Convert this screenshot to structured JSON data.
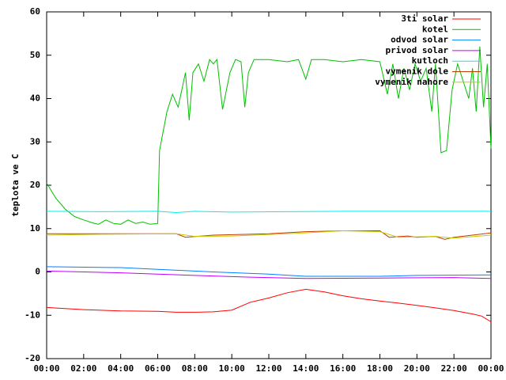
{
  "chart_data": {
    "type": "line",
    "y_label": "teplota ve C",
    "xlim": [
      0,
      24
    ],
    "xticks": [
      {
        "value": 0,
        "label": "00:00"
      },
      {
        "value": 2,
        "label": "02:00"
      },
      {
        "value": 4,
        "label": "04:00"
      },
      {
        "value": 6,
        "label": "06:00"
      },
      {
        "value": 8,
        "label": "08:00"
      },
      {
        "value": 10,
        "label": "10:00"
      },
      {
        "value": 12,
        "label": "12:00"
      },
      {
        "value": 14,
        "label": "14:00"
      },
      {
        "value": 16,
        "label": "16:00"
      },
      {
        "value": 18,
        "label": "18:00"
      },
      {
        "value": 20,
        "label": "20:00"
      },
      {
        "value": 22,
        "label": "22:00"
      },
      {
        "value": 24,
        "label": "00:00"
      }
    ],
    "ylim": [
      -20,
      60
    ],
    "yticks": [
      -20,
      -10,
      0,
      10,
      20,
      30,
      40,
      50,
      60
    ],
    "legend": "top-right",
    "series": [
      {
        "name": "3ti solar",
        "color": "#ff0000",
        "x": [
          0,
          2,
          4,
          6,
          7,
          8,
          9,
          10,
          11,
          12,
          13,
          14,
          15,
          16,
          17,
          18,
          19,
          20,
          21,
          22,
          23,
          23.5,
          24
        ],
        "values": [
          -8.2,
          -8.7,
          -9,
          -9.1,
          -9.3,
          -9.3,
          -9.2,
          -8.8,
          -7,
          -6,
          -4.8,
          -4,
          -4.6,
          -5.5,
          -6.2,
          -6.7,
          -7.2,
          -7.7,
          -8.3,
          -8.9,
          -9.7,
          -10.2,
          -11.5
        ]
      },
      {
        "name": "kotel",
        "color": "#00c000",
        "x": [
          0,
          0.5,
          1,
          1.5,
          2,
          2.5,
          2.8,
          3.2,
          3.6,
          4,
          4.4,
          4.8,
          5.2,
          5.6,
          6,
          6.1,
          6.5,
          6.8,
          7.1,
          7.5,
          7.7,
          7.9,
          8.2,
          8.5,
          8.8,
          9,
          9.2,
          9.5,
          9.9,
          10.2,
          10.5,
          10.7,
          10.9,
          11.2,
          12,
          13,
          13.6,
          14,
          14.3,
          15,
          16,
          17,
          18,
          18.4,
          18.7,
          19,
          19.3,
          19.6,
          19.9,
          20.2,
          20.5,
          20.8,
          21,
          21.3,
          21.6,
          21.9,
          22.2,
          22.5,
          22.8,
          23,
          23.2,
          23.4,
          23.6,
          23.8,
          24
        ],
        "values": [
          20.5,
          17,
          14.5,
          12.8,
          12,
          11.3,
          11,
          12,
          11.2,
          11,
          12,
          11.2,
          11.5,
          11,
          11.2,
          28,
          37,
          41,
          38,
          46,
          35,
          46,
          48,
          44,
          49,
          48,
          49,
          37.5,
          46,
          49,
          48.5,
          38,
          46,
          49,
          49,
          48.5,
          49,
          44.5,
          49,
          49,
          48.5,
          49,
          48.5,
          41,
          48,
          40,
          47,
          42,
          48,
          44,
          47,
          37,
          48,
          27.5,
          28,
          42,
          48,
          44,
          40,
          47,
          37,
          52,
          38,
          48,
          28.5
        ]
      },
      {
        "name": "odvod solar",
        "color": "#0080ff",
        "x": [
          0,
          4,
          6,
          9,
          12,
          14,
          18,
          20,
          24
        ],
        "values": [
          1.2,
          1,
          0.6,
          0,
          -0.5,
          -1,
          -1,
          -0.8,
          -0.7
        ]
      },
      {
        "name": "privod solar",
        "color": "#c000ff",
        "x": [
          0,
          4,
          8,
          11,
          14,
          18,
          22,
          24
        ],
        "values": [
          0.2,
          -0.2,
          -0.8,
          -1.2,
          -1.5,
          -1.4,
          -1.3,
          -1.5
        ]
      },
      {
        "name": "kutloch",
        "color": "#00eeee",
        "x": [
          0,
          3,
          6,
          7,
          8,
          10,
          13,
          16,
          20,
          24
        ],
        "values": [
          14,
          13.9,
          14,
          13.7,
          14,
          13.8,
          13.9,
          14,
          14,
          14
        ]
      },
      {
        "name": "vymenik dole",
        "color": "#c04000",
        "x": [
          0,
          3,
          7,
          7.5,
          9,
          12,
          14,
          16,
          18,
          18.5,
          19.5,
          20,
          21,
          21.5,
          22,
          24
        ],
        "values": [
          8.8,
          8.8,
          8.8,
          8,
          8.5,
          8.8,
          9.3,
          9.5,
          9.5,
          8,
          8.3,
          8,
          8.2,
          7.5,
          8,
          9
        ]
      },
      {
        "name": "vymenik nahore",
        "color": "#c8c800",
        "x": [
          0,
          3,
          7,
          8,
          10,
          13,
          16,
          18,
          19,
          21,
          22,
          24
        ],
        "values": [
          8.5,
          8.7,
          8.8,
          8.2,
          8.3,
          8.8,
          9.5,
          9.3,
          8,
          8.2,
          7.8,
          8.5
        ]
      }
    ]
  }
}
